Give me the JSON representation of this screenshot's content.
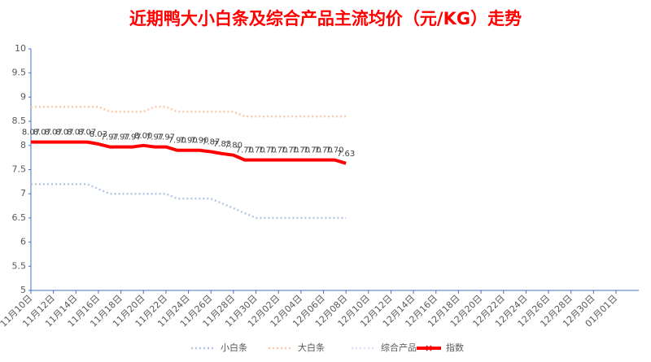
{
  "chart_data": {
    "type": "line",
    "title": "近期鸭大小白条及综合产品主流均价（元/KG）走势",
    "categories": [
      "11月10日",
      null,
      "11月12日",
      null,
      "11月14日",
      null,
      "11月16日",
      null,
      "11月18日",
      null,
      "11月20日",
      null,
      "11月22日",
      null,
      "11月24日",
      null,
      "11月26日",
      null,
      "11月28日",
      null,
      "11月30日",
      null,
      "12月02日",
      null,
      "12月04日",
      null,
      "12月06日",
      null,
      "12月08日",
      null,
      "12月10日",
      null,
      "12月12日",
      null,
      "12月14日",
      null,
      "12月16日",
      null,
      "12月18日",
      null,
      "12月20日",
      null,
      "12月22日",
      null,
      "12月24日",
      null,
      "12月26日",
      null,
      "12月28日",
      null,
      "12月30日",
      null,
      "01月01日"
    ],
    "series": [
      {
        "name": "小白条",
        "color": "#b4c7e7",
        "dash": true,
        "values": [
          7.2,
          7.2,
          7.2,
          7.2,
          7.2,
          7.2,
          7.1,
          7.0,
          7.0,
          7.0,
          7.0,
          7.0,
          7.0,
          6.9,
          6.9,
          6.9,
          6.9,
          6.8,
          6.7,
          6.6,
          6.5,
          6.5,
          6.5,
          6.5,
          6.5,
          6.5,
          6.5,
          6.5,
          6.5,
          null,
          null,
          null,
          null,
          null,
          null,
          null,
          null,
          null,
          null,
          null,
          null,
          null,
          null,
          null,
          null,
          null,
          null,
          null,
          null,
          null,
          null,
          null,
          null
        ]
      },
      {
        "name": "大白条",
        "color": "#f8cbad",
        "dash": true,
        "values": [
          8.8,
          8.8,
          8.8,
          8.8,
          8.8,
          8.8,
          8.8,
          8.7,
          8.7,
          8.7,
          8.7,
          8.8,
          8.8,
          8.7,
          8.7,
          8.7,
          8.7,
          8.7,
          8.7,
          8.6,
          8.6,
          8.6,
          8.6,
          8.6,
          8.6,
          8.6,
          8.6,
          8.6,
          8.6,
          null,
          null,
          null,
          null,
          null,
          null,
          null,
          null,
          null,
          null,
          null,
          null,
          null,
          null,
          null,
          null,
          null,
          null,
          null,
          null,
          null,
          null,
          null,
          null
        ]
      },
      {
        "name": "综合产品",
        "color": "#dae3f3",
        "dash": true,
        "values": [
          8.07,
          8.07,
          8.07,
          8.07,
          8.07,
          8.07,
          8.03,
          7.97,
          7.97,
          7.97,
          8.0,
          7.97,
          7.97,
          7.9,
          7.9,
          7.9,
          7.87,
          7.83,
          7.8,
          7.7,
          7.7,
          7.7,
          7.7,
          7.7,
          7.7,
          7.7,
          7.7,
          7.7,
          7.63,
          null,
          null,
          null,
          null,
          null,
          null,
          null,
          null,
          null,
          null,
          null,
          null,
          null,
          null,
          null,
          null,
          null,
          null,
          null,
          null,
          null,
          null,
          null,
          null
        ]
      },
      {
        "name": "指数",
        "color": "#ff0000",
        "dash": false,
        "labels": true,
        "values": [
          8.07,
          8.07,
          8.07,
          8.07,
          8.07,
          8.07,
          8.03,
          7.97,
          7.97,
          7.97,
          8.0,
          7.97,
          7.97,
          7.9,
          7.9,
          7.9,
          7.87,
          7.83,
          7.8,
          7.7,
          7.7,
          7.7,
          7.7,
          7.7,
          7.7,
          7.7,
          7.7,
          7.7,
          7.63,
          null,
          null,
          null,
          null,
          null,
          null,
          null,
          null,
          null,
          null,
          null,
          null,
          null,
          null,
          null,
          null,
          null,
          null,
          null,
          null,
          null,
          null,
          null,
          null
        ],
        "value_labels": [
          "8.07",
          "8.07",
          "8.07",
          "8.07",
          "8.07",
          "8.07",
          "8.03",
          "7.97",
          "7.97",
          "7.97",
          "8.00",
          "7.97",
          "7.97",
          "7.90",
          "7.90",
          "7.90",
          "7.87",
          "7.83",
          "7.80",
          "7.70",
          "7.70",
          "7.70",
          "7.70",
          "7.70",
          "7.70",
          "7.70",
          "7.70",
          "7.70",
          "7.63",
          null,
          null,
          null,
          null,
          null,
          null,
          null,
          null,
          null,
          null,
          null,
          null,
          null,
          null,
          null,
          null,
          null,
          null,
          null,
          null,
          null,
          null,
          null,
          null
        ]
      }
    ],
    "ylim": [
      5,
      10
    ],
    "yticks": [
      5,
      5.5,
      6,
      6.5,
      7,
      7.5,
      8,
      8.5,
      9,
      9.5,
      10
    ],
    "grid": false,
    "legend": "bottom"
  }
}
